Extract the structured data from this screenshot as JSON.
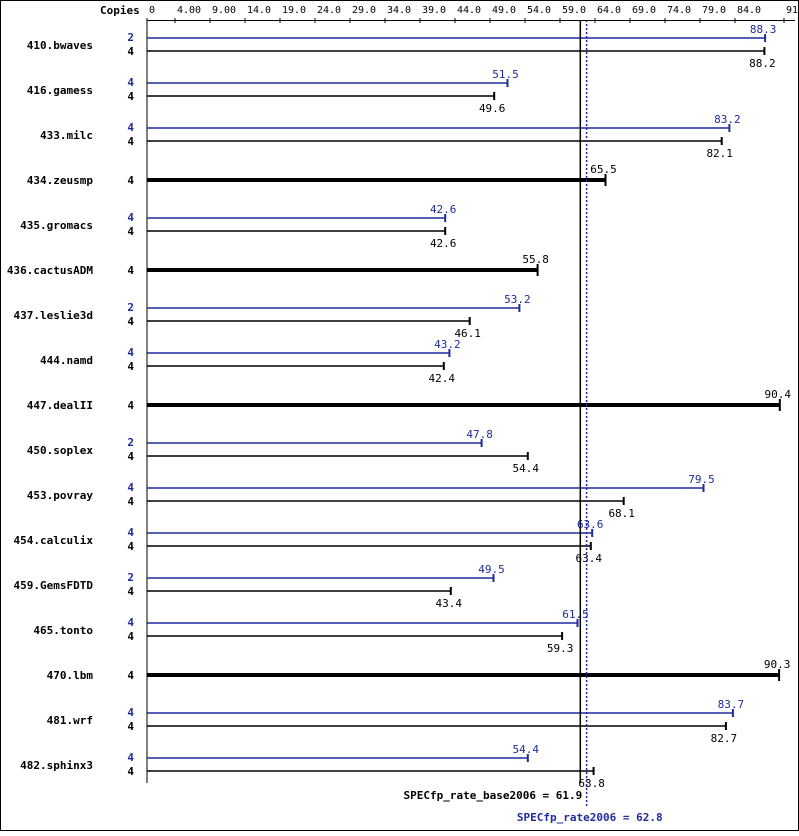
{
  "colors": {
    "peak": "#1f2a9e",
    "base": "#000000",
    "background": "#ffffff",
    "frame": "#000000"
  },
  "header": {
    "copies_label": "Copies"
  },
  "chart_data": {
    "type": "bar",
    "orientation": "horizontal",
    "xlim": [
      0,
      92
    ],
    "ticks": [
      {
        "v": 0,
        "label": "0"
      },
      {
        "v": 4,
        "label": "4.00"
      },
      {
        "v": 9,
        "label": "9.00"
      },
      {
        "v": 14,
        "label": "14.0"
      },
      {
        "v": 19,
        "label": "19.0"
      },
      {
        "v": 24,
        "label": "24.0"
      },
      {
        "v": 29,
        "label": "29.0"
      },
      {
        "v": 34,
        "label": "34.0"
      },
      {
        "v": 39,
        "label": "39.0"
      },
      {
        "v": 44,
        "label": "44.0"
      },
      {
        "v": 49,
        "label": "49.0"
      },
      {
        "v": 54,
        "label": "54.0"
      },
      {
        "v": 59,
        "label": "59.0"
      },
      {
        "v": 64,
        "label": "64.0"
      },
      {
        "v": 69,
        "label": "69.0"
      },
      {
        "v": 74,
        "label": "74.0"
      },
      {
        "v": 79,
        "label": "79.0"
      },
      {
        "v": 84,
        "label": "84.0"
      },
      {
        "v": 91,
        "label": "91.0"
      }
    ],
    "benchmarks": [
      {
        "name": "410.bwaves",
        "peak": {
          "copies": "2",
          "value": 88.3,
          "label": "88.3"
        },
        "base": {
          "copies": "4",
          "value": 88.2,
          "label": "88.2"
        }
      },
      {
        "name": "416.gamess",
        "peak": {
          "copies": "4",
          "value": 51.5,
          "label": "51.5"
        },
        "base": {
          "copies": "4",
          "value": 49.6,
          "label": "49.6"
        }
      },
      {
        "name": "433.milc",
        "peak": {
          "copies": "4",
          "value": 83.2,
          "label": "83.2"
        },
        "base": {
          "copies": "4",
          "value": 82.1,
          "label": "82.1"
        }
      },
      {
        "name": "434.zeusmp",
        "combined": {
          "copies": "4",
          "value": 65.5,
          "label": "65.5"
        }
      },
      {
        "name": "435.gromacs",
        "peak": {
          "copies": "4",
          "value": 42.6,
          "label": "42.6"
        },
        "base": {
          "copies": "4",
          "value": 42.6,
          "label": "42.6"
        }
      },
      {
        "name": "436.cactusADM",
        "combined": {
          "copies": "4",
          "value": 55.8,
          "label": "55.8"
        }
      },
      {
        "name": "437.leslie3d",
        "peak": {
          "copies": "2",
          "value": 53.2,
          "label": "53.2"
        },
        "base": {
          "copies": "4",
          "value": 46.1,
          "label": "46.1"
        }
      },
      {
        "name": "444.namd",
        "peak": {
          "copies": "4",
          "value": 43.2,
          "label": "43.2"
        },
        "base": {
          "copies": "4",
          "value": 42.4,
          "label": "42.4"
        }
      },
      {
        "name": "447.dealII",
        "combined": {
          "copies": "4",
          "value": 90.4,
          "label": "90.4"
        }
      },
      {
        "name": "450.soplex",
        "peak": {
          "copies": "2",
          "value": 47.8,
          "label": "47.8"
        },
        "base": {
          "copies": "4",
          "value": 54.4,
          "label": "54.4"
        }
      },
      {
        "name": "453.povray",
        "peak": {
          "copies": "4",
          "value": 79.5,
          "label": "79.5"
        },
        "base": {
          "copies": "4",
          "value": 68.1,
          "label": "68.1"
        }
      },
      {
        "name": "454.calculix",
        "peak": {
          "copies": "4",
          "value": 63.6,
          "label": "63.6"
        },
        "base": {
          "copies": "4",
          "value": 63.4,
          "label": "63.4"
        }
      },
      {
        "name": "459.GemsFDTD",
        "peak": {
          "copies": "2",
          "value": 49.5,
          "label": "49.5"
        },
        "base": {
          "copies": "4",
          "value": 43.4,
          "label": "43.4"
        }
      },
      {
        "name": "465.tonto",
        "peak": {
          "copies": "4",
          "value": 61.5,
          "label": "61.5"
        },
        "base": {
          "copies": "4",
          "value": 59.3,
          "label": "59.3"
        }
      },
      {
        "name": "470.lbm",
        "combined": {
          "copies": "4",
          "value": 90.3,
          "label": "90.3"
        }
      },
      {
        "name": "481.wrf",
        "peak": {
          "copies": "4",
          "value": 83.7,
          "label": "83.7"
        },
        "base": {
          "copies": "4",
          "value": 82.7,
          "label": "82.7"
        }
      },
      {
        "name": "482.sphinx3",
        "peak": {
          "copies": "4",
          "value": 54.4,
          "label": "54.4"
        },
        "base": {
          "copies": "4",
          "value": 63.8,
          "label": "63.8"
        }
      }
    ],
    "base_mean": {
      "value": 61.9,
      "label": "SPECfp_rate_base2006 = 61.9"
    },
    "peak_mean": {
      "value": 62.8,
      "label": "SPECfp_rate2006 = 62.8"
    }
  }
}
